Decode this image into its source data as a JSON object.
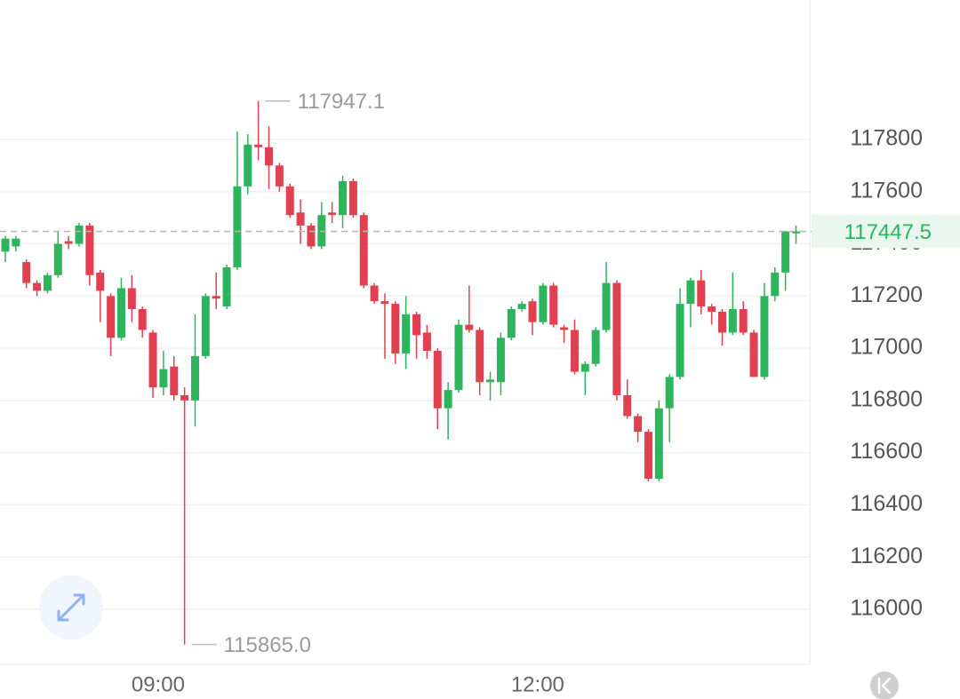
{
  "chart_data": {
    "type": "candlestick",
    "categories": [
      null,
      null,
      null,
      null,
      null,
      null,
      null,
      null,
      null,
      null,
      null,
      null,
      null,
      null,
      null,
      "09:00",
      null,
      null,
      null,
      null,
      null,
      null,
      null,
      null,
      null,
      null,
      null,
      null,
      null,
      null,
      null,
      null,
      null,
      null,
      null,
      null,
      null,
      null,
      null,
      null,
      null,
      null,
      null,
      null,
      null,
      null,
      null,
      null,
      null,
      null,
      null,
      "12:00",
      null,
      null,
      null,
      null,
      null,
      null,
      null,
      null,
      null,
      null,
      null,
      null,
      null,
      null,
      null,
      null,
      null,
      null,
      null,
      null,
      null,
      null,
      null,
      null
    ],
    "open": [
      117370,
      117390,
      117330,
      117250,
      117220,
      117280,
      117410,
      117400,
      117470,
      117290,
      117200,
      117040,
      117230,
      117150,
      117060,
      116850,
      116930,
      116820,
      116800,
      116970,
      117200,
      117160,
      117310,
      117620,
      117780,
      117770,
      117700,
      117620,
      117520,
      117470,
      117390,
      117520,
      117510,
      117640,
      117510,
      117240,
      117180,
      117170,
      116980,
      117130,
      117060,
      116990,
      116770,
      116840,
      117090,
      117070,
      116870,
      116870,
      117040,
      117150,
      117180,
      117100,
      117240,
      117080,
      117070,
      116910,
      116940,
      117070,
      117250,
      116820,
      116740,
      116680,
      116500,
      116770,
      116890,
      117170,
      117260,
      117160,
      117140,
      117060,
      117150,
      117060,
      116890,
      117200,
      117290,
      117440
    ],
    "high": [
      117430,
      117430,
      117340,
      117260,
      117290,
      117450,
      117430,
      117480,
      117480,
      117300,
      117210,
      117270,
      117280,
      117160,
      117070,
      116990,
      116970,
      116850,
      117130,
      117210,
      117290,
      117320,
      117830,
      117820,
      117947.1,
      117850,
      117710,
      117630,
      117570,
      117480,
      117560,
      117560,
      117660,
      117650,
      117520,
      117250,
      117210,
      117180,
      117200,
      117140,
      117090,
      117000,
      116870,
      117110,
      117240,
      117080,
      116910,
      117060,
      117160,
      117180,
      117190,
      117250,
      117250,
      117090,
      117110,
      116950,
      117080,
      117330,
      117260,
      116880,
      116750,
      116690,
      116800,
      116900,
      117230,
      117270,
      117300,
      117170,
      117150,
      117290,
      117180,
      117070,
      117250,
      117310,
      117450,
      117470
    ],
    "low": [
      117330,
      117370,
      117230,
      117200,
      117210,
      117270,
      117380,
      117390,
      117240,
      117100,
      116970,
      117030,
      117100,
      117040,
      116810,
      116820,
      116800,
      115865,
      116700,
      116960,
      117150,
      117150,
      117300,
      117590,
      117720,
      117610,
      117600,
      117500,
      117400,
      117380,
      117380,
      117480,
      117460,
      117500,
      117230,
      117170,
      116960,
      116940,
      116920,
      116960,
      116960,
      116690,
      116650,
      116830,
      117060,
      116820,
      116800,
      116820,
      117030,
      117140,
      117050,
      117090,
      117080,
      117020,
      116900,
      116820,
      116930,
      117060,
      116800,
      116730,
      116640,
      116490,
      116490,
      116640,
      116880,
      117080,
      117130,
      117090,
      117010,
      117050,
      117050,
      116890,
      116880,
      117180,
      117220,
      117400
    ],
    "close": [
      117420,
      117420,
      117250,
      117220,
      117280,
      117400,
      117400,
      117470,
      117280,
      117220,
      117040,
      117230,
      117150,
      117070,
      116850,
      116920,
      116820,
      116800,
      116970,
      117200,
      117190,
      117310,
      117620,
      117780,
      117770,
      117700,
      117620,
      117510,
      117470,
      117390,
      117510,
      117510,
      117640,
      117510,
      117240,
      117180,
      117170,
      116980,
      117130,
      117050,
      116990,
      116770,
      116840,
      117090,
      117070,
      116870,
      116880,
      117040,
      117150,
      117170,
      117100,
      117240,
      117090,
      117070,
      116910,
      116940,
      117070,
      117250,
      116820,
      116740,
      116680,
      116500,
      116770,
      116890,
      117170,
      117260,
      117160,
      117140,
      117060,
      117150,
      117060,
      116890,
      117200,
      117290,
      117447.5,
      117447.5
    ],
    "up_color": "#2db55d",
    "down_color": "#e0404f",
    "ylim": [
      115789,
      118334
    ],
    "yticks": [
      116000,
      116200,
      116400,
      116600,
      116800,
      117000,
      117200,
      117400,
      117600,
      117800
    ],
    "grid": true,
    "max_annotation": {
      "value": 117947.1
    },
    "min_annotation": {
      "value": 115865,
      "label": "115865.0"
    },
    "current_price": {
      "value": 117447.5
    }
  }
}
